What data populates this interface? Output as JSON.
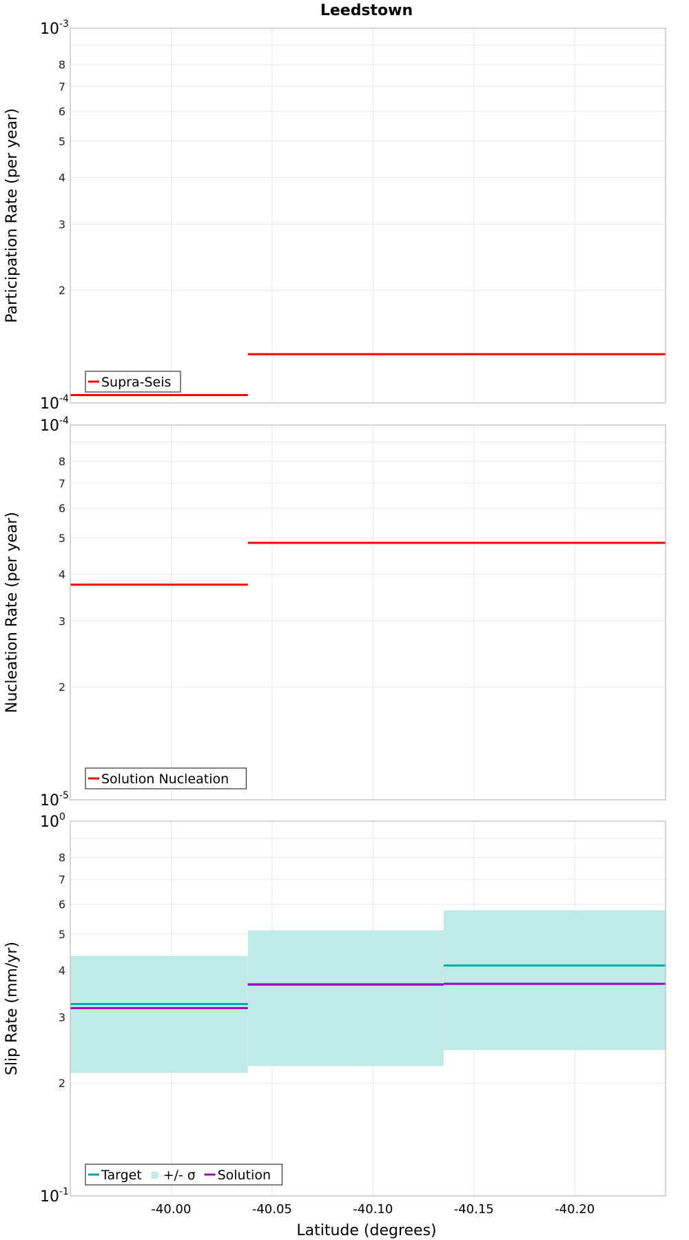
{
  "title": "Leedstown",
  "colors": {
    "solution": "#ff0000",
    "target": "#00aaaa",
    "sigma_fill": "#bfeae8",
    "slip_solution": "#a000c0",
    "grid": "#e8e8e8",
    "frame": "#bbbbbb"
  },
  "x_axis": {
    "label": "Latitude (degrees)",
    "range": [
      -39.95,
      -40.245
    ],
    "ticks": [
      -40.0,
      -40.05,
      -40.1,
      -40.15,
      -40.2
    ],
    "tick_labels": [
      "-40.00",
      "-40.05",
      "-40.10",
      "-40.15",
      "-40.20"
    ],
    "reversed": true
  },
  "chart_data": [
    {
      "type": "line",
      "step": true,
      "ylabel": "Participation Rate (per year)",
      "yscale": "log",
      "ylim": [
        0.0001,
        0.001
      ],
      "decade_labels": [
        {
          "base": "10",
          "exp": "-4"
        },
        {
          "base": "10",
          "exp": "-3"
        }
      ],
      "minor_tick_labels": [
        "2",
        "3",
        "4",
        "5",
        "6",
        "7",
        "8"
      ],
      "legend": {
        "position": "bottom-left",
        "entries": [
          {
            "label": "Supra-Seis",
            "color_key": "solution"
          }
        ]
      },
      "series": [
        {
          "name": "Supra-Seis",
          "color_key": "solution",
          "segments": [
            {
              "x": [
                -39.95,
                -40.038
              ],
              "y": 0.000105
            },
            {
              "x": [
                -40.038,
                -40.245
              ],
              "y": 0.000135
            }
          ]
        }
      ]
    },
    {
      "type": "line",
      "step": true,
      "ylabel": "Nucleation Rate (per year)",
      "yscale": "log",
      "ylim": [
        1e-05,
        0.0001
      ],
      "decade_labels": [
        {
          "base": "10",
          "exp": "-5"
        },
        {
          "base": "10",
          "exp": "-4"
        }
      ],
      "minor_tick_labels": [
        "2",
        "3",
        "4",
        "5",
        "6",
        "7",
        "8"
      ],
      "legend": {
        "position": "bottom-left",
        "entries": [
          {
            "label": "Solution Nucleation",
            "color_key": "solution"
          }
        ]
      },
      "series": [
        {
          "name": "Solution Nucleation",
          "color_key": "solution",
          "segments": [
            {
              "x": [
                -39.95,
                -40.038
              ],
              "y": 3.75e-05
            },
            {
              "x": [
                -40.038,
                -40.245
              ],
              "y": 4.85e-05
            }
          ]
        }
      ]
    },
    {
      "type": "area",
      "step": true,
      "ylabel": "Slip Rate (mm/yr)",
      "yscale": "log",
      "ylim": [
        0.1,
        1.0
      ],
      "decade_labels": [
        {
          "base": "10",
          "exp": "-1"
        },
        {
          "base": "10",
          "exp": "0"
        }
      ],
      "minor_tick_labels": [
        "2",
        "3",
        "4",
        "5",
        "6",
        "7",
        "8"
      ],
      "legend": {
        "position": "bottom-left",
        "entries": [
          {
            "label": "Target",
            "color_key": "target",
            "kind": "line"
          },
          {
            "label": "+/- σ",
            "color_key": "sigma_fill",
            "kind": "box"
          },
          {
            "label": "Solution",
            "color_key": "slip_solution",
            "kind": "line"
          }
        ]
      },
      "bands": [
        {
          "name": "+/- σ",
          "color_key": "sigma_fill",
          "segments": [
            {
              "x": [
                -39.95,
                -40.038
              ],
              "low": 0.213,
              "high": 0.437
            },
            {
              "x": [
                -40.038,
                -40.135
              ],
              "low": 0.222,
              "high": 0.511
            },
            {
              "x": [
                -40.135,
                -40.245
              ],
              "low": 0.245,
              "high": 0.578
            }
          ]
        }
      ],
      "series": [
        {
          "name": "Target",
          "color_key": "target",
          "segments": [
            {
              "x": [
                -39.95,
                -40.038
              ],
              "y": 0.325
            },
            {
              "x": [
                -40.038,
                -40.135
              ],
              "y": 0.366
            },
            {
              "x": [
                -40.135,
                -40.245
              ],
              "y": 0.412
            }
          ]
        },
        {
          "name": "Solution",
          "color_key": "slip_solution",
          "segments": [
            {
              "x": [
                -39.95,
                -40.038
              ],
              "y": 0.317
            },
            {
              "x": [
                -40.038,
                -40.135
              ],
              "y": 0.367
            },
            {
              "x": [
                -40.135,
                -40.245
              ],
              "y": 0.368
            }
          ]
        }
      ]
    }
  ]
}
